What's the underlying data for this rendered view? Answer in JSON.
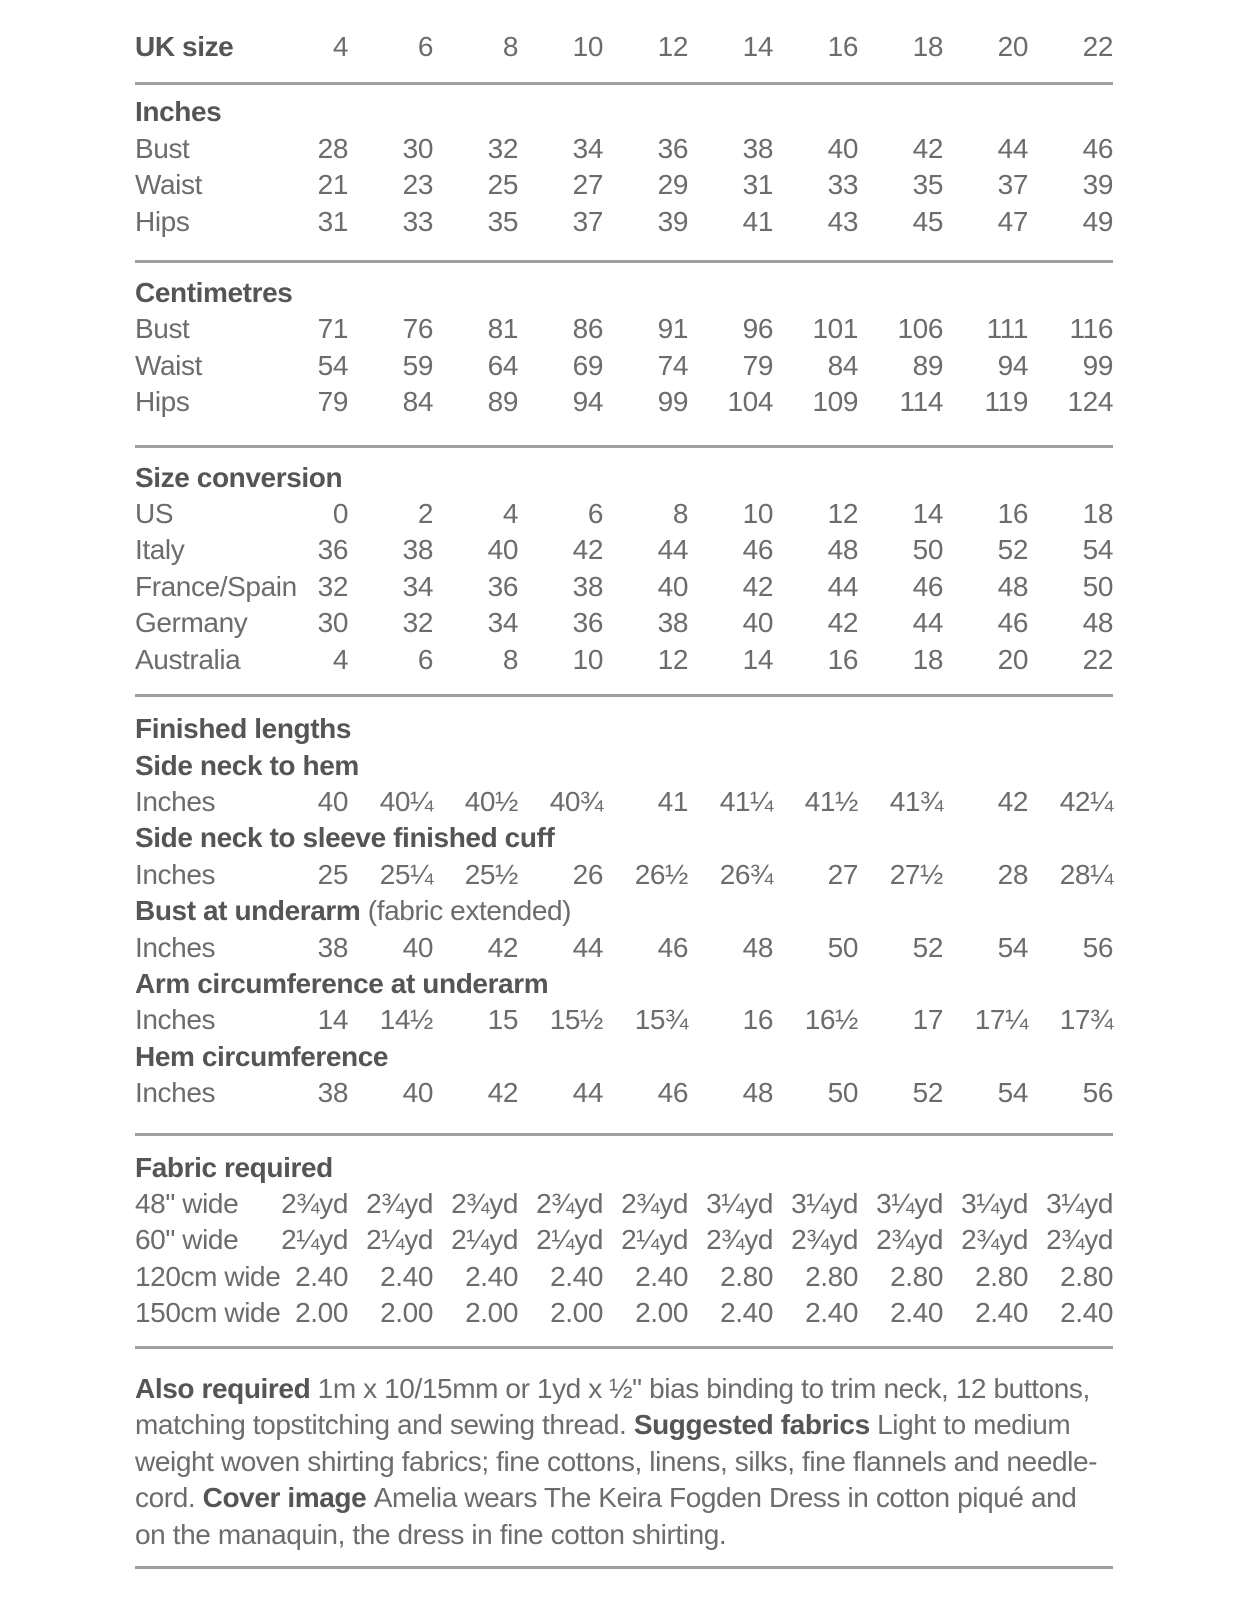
{
  "page": {
    "background": "#ffffff",
    "text_color": "#6b6c6e",
    "bold_text_color": "#545557",
    "rule_color": "#9da0a3"
  },
  "table": {
    "sections": [
      {
        "rows": [
          {
            "kind": "data",
            "label": "UK size",
            "label_bold": true,
            "values": [
              "4",
              "6",
              "8",
              "10",
              "12",
              "14",
              "16",
              "18",
              "20",
              "22"
            ]
          }
        ]
      },
      {
        "rows": [
          {
            "kind": "heading",
            "text": "Inches"
          },
          {
            "kind": "data",
            "label": "Bust",
            "values": [
              "28",
              "30",
              "32",
              "34",
              "36",
              "38",
              "40",
              "42",
              "44",
              "46"
            ]
          },
          {
            "kind": "data",
            "label": "Waist",
            "values": [
              "21",
              "23",
              "25",
              "27",
              "29",
              "31",
              "33",
              "35",
              "37",
              "39"
            ]
          },
          {
            "kind": "data",
            "label": "Hips",
            "values": [
              "31",
              "33",
              "35",
              "37",
              "39",
              "41",
              "43",
              "45",
              "47",
              "49"
            ]
          }
        ]
      },
      {
        "rows": [
          {
            "kind": "heading",
            "text": "Centimetres"
          },
          {
            "kind": "data",
            "label": "Bust",
            "values": [
              "71",
              "76",
              "81",
              "86",
              "91",
              "96",
              "101",
              "106",
              "111",
              "116"
            ]
          },
          {
            "kind": "data",
            "label": "Waist",
            "values": [
              "54",
              "59",
              "64",
              "69",
              "74",
              "79",
              "84",
              "89",
              "94",
              "99"
            ]
          },
          {
            "kind": "data",
            "label": "Hips",
            "values": [
              "79",
              "84",
              "89",
              "94",
              "99",
              "104",
              "109",
              "114",
              "119",
              "124"
            ]
          }
        ]
      },
      {
        "rows": [
          {
            "kind": "heading",
            "text": "Size conversion"
          },
          {
            "kind": "data",
            "label": "US",
            "values": [
              "0",
              "2",
              "4",
              "6",
              "8",
              "10",
              "12",
              "14",
              "16",
              "18"
            ]
          },
          {
            "kind": "data",
            "label": "Italy",
            "values": [
              "36",
              "38",
              "40",
              "42",
              "44",
              "46",
              "48",
              "50",
              "52",
              "54"
            ]
          },
          {
            "kind": "data",
            "label": "France/Spain",
            "values": [
              "32",
              "34",
              "36",
              "38",
              "40",
              "42",
              "44",
              "46",
              "48",
              "50"
            ]
          },
          {
            "kind": "data",
            "label": "Germany",
            "values": [
              "30",
              "32",
              "34",
              "36",
              "38",
              "40",
              "42",
              "44",
              "46",
              "48"
            ]
          },
          {
            "kind": "data",
            "label": "Australia",
            "values": [
              "4",
              "6",
              "8",
              "10",
              "12",
              "14",
              "16",
              "18",
              "20",
              "22"
            ]
          }
        ]
      },
      {
        "rows": [
          {
            "kind": "heading",
            "text": "Finished lengths"
          },
          {
            "kind": "subheading",
            "text": "Side neck to hem"
          },
          {
            "kind": "data",
            "label": "Inches",
            "values": [
              "40",
              "40¼",
              "40½",
              "40¾",
              "41",
              "41¼",
              "41½",
              "41¾",
              "42",
              "42¼"
            ]
          },
          {
            "kind": "subheading",
            "text": "Side neck to sleeve finished cuff"
          },
          {
            "kind": "data",
            "label": "Inches",
            "values": [
              "25",
              "25¼",
              "25½",
              "26",
              "26½",
              "26¾",
              "27",
              "27½",
              "28",
              "28¼"
            ]
          },
          {
            "kind": "subheading",
            "text": "Bust at underarm",
            "suffix": " (fabric extended)"
          },
          {
            "kind": "data",
            "label": "Inches",
            "values": [
              "38",
              "40",
              "42",
              "44",
              "46",
              "48",
              "50",
              "52",
              "54",
              "56"
            ]
          },
          {
            "kind": "subheading",
            "text": "Arm circumference at underarm"
          },
          {
            "kind": "data",
            "label": "Inches",
            "values": [
              "14",
              "14½",
              "15",
              "15½",
              "15¾",
              "16",
              "16½",
              "17",
              "17¼",
              "17¾"
            ]
          },
          {
            "kind": "subheading",
            "text": "Hem circumference"
          },
          {
            "kind": "data",
            "label": "Inches",
            "values": [
              "38",
              "40",
              "42",
              "44",
              "46",
              "48",
              "50",
              "52",
              "54",
              "56"
            ]
          }
        ]
      },
      {
        "rows": [
          {
            "kind": "heading",
            "text": "Fabric required"
          },
          {
            "kind": "data",
            "label": "48\" wide",
            "values": [
              "2¾yd",
              "2¾yd",
              "2¾yd",
              "2¾yd",
              "2¾yd",
              "3¼yd",
              "3¼yd",
              "3¼yd",
              "3¼yd",
              "3¼yd"
            ]
          },
          {
            "kind": "data",
            "label": "60\" wide",
            "values": [
              "2¼yd",
              "2¼yd",
              "2¼yd",
              "2¼yd",
              "2¼yd",
              "2¾yd",
              "2¾yd",
              "2¾yd",
              "2¾yd",
              "2¾yd"
            ]
          },
          {
            "kind": "data",
            "label": "120cm wide",
            "values": [
              "2.40",
              "2.40",
              "2.40",
              "2.40",
              "2.40",
              "2.80",
              "2.80",
              "2.80",
              "2.80",
              "2.80"
            ]
          },
          {
            "kind": "data",
            "label": "150cm wide",
            "values": [
              "2.00",
              "2.00",
              "2.00",
              "2.00",
              "2.00",
              "2.40",
              "2.40",
              "2.40",
              "2.40",
              "2.40"
            ]
          }
        ]
      }
    ]
  },
  "notes": {
    "segments": [
      {
        "bold": true,
        "text": "Also required "
      },
      {
        "bold": false,
        "text": "1m x 10/15mm or 1yd x ½\" bias binding to trim neck, 12 buttons, matching topstitching and sewing thread. "
      },
      {
        "bold": true,
        "text": "Suggested fabrics "
      },
      {
        "bold": false,
        "text": "Light to medium weight woven shirting fabrics; fine cottons, linens, silks, fine flannels and needle-cord. "
      },
      {
        "bold": true,
        "text": "Cover image "
      },
      {
        "bold": false,
        "text": "Amelia wears The Keira Fogden Dress in cotton piqué and on the manaquin, the dress in fine cotton shirting."
      }
    ]
  }
}
